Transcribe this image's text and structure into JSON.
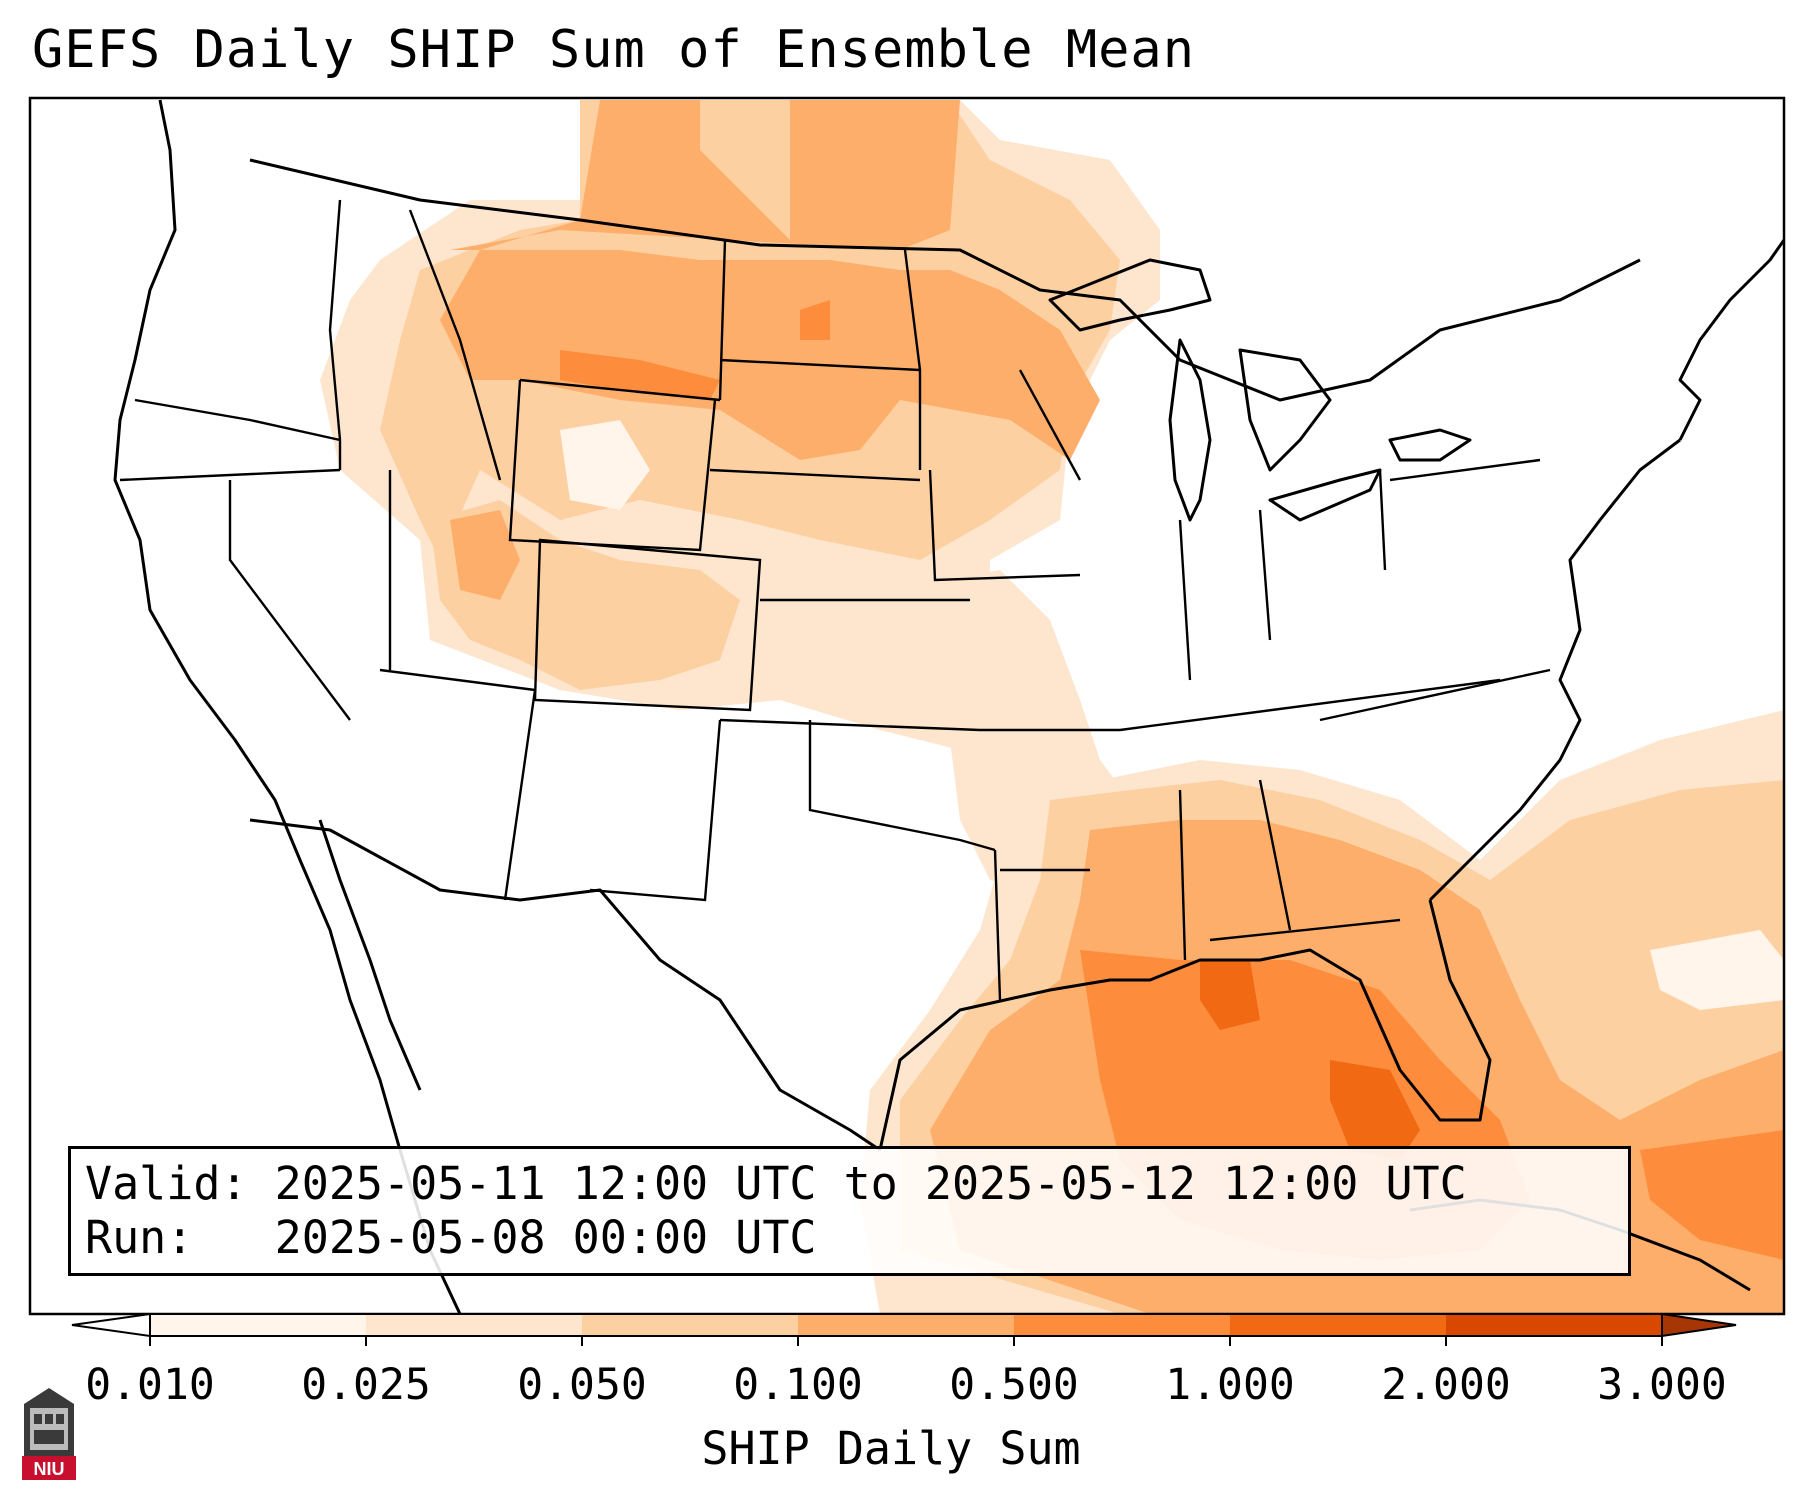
{
  "title": "GEFS Daily SHIP Sum of Ensemble Mean",
  "info": {
    "valid_label": "Valid:",
    "valid_value": "2025-05-11 12:00 UTC to 2025-05-12 12:00 UTC",
    "run_label": "Run:",
    "run_value": "2025-05-08 00:00 UTC"
  },
  "colorbar": {
    "title": "SHIP Daily Sum",
    "ticks": [
      "0.010",
      "0.025",
      "0.050",
      "0.100",
      "0.500",
      "1.000",
      "2.000",
      "3.000"
    ],
    "colors": [
      "#fff5eb",
      "#fee6ce",
      "#fdd0a2",
      "#fdae6b",
      "#fd8d3c",
      "#f16913",
      "#d94801"
    ],
    "extend": "both",
    "under_color": "#ffffff",
    "over_color": "#a63603"
  },
  "logo": {
    "text": "NIU",
    "color": "#c8102e"
  }
}
